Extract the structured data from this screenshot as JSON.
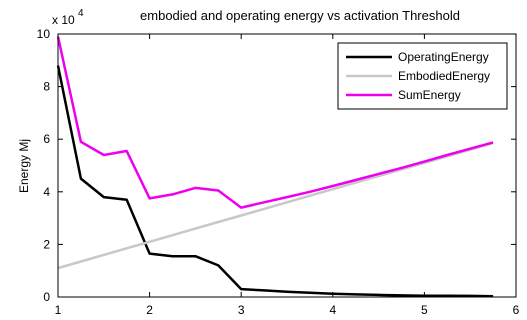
{
  "chart_data": {
    "type": "line",
    "title": "embodied and operating energy  vs activation Threshold",
    "xlabel": "",
    "ylabel": "Energy Mj",
    "y_exponent_base": "x 10",
    "y_exponent_power": "4",
    "xlim": [
      1,
      6
    ],
    "ylim": [
      0,
      10
    ],
    "x_ticks": [
      "1",
      "2",
      "3",
      "4",
      "5",
      "6"
    ],
    "y_ticks": [
      "0",
      "2",
      "4",
      "6",
      "8",
      "10"
    ],
    "grid": false,
    "legend_position": "top-right",
    "series": [
      {
        "name": "OperatingEnergy",
        "color": "#000000",
        "x": [
          1,
          1.25,
          1.5,
          1.75,
          2,
          2.25,
          2.5,
          2.75,
          3,
          3.25,
          3.5,
          3.75,
          4,
          4.25,
          4.5,
          4.75,
          5,
          5.25,
          5.5,
          5.75
        ],
        "y": [
          8.8,
          4.5,
          3.8,
          3.7,
          1.65,
          1.55,
          1.55,
          1.2,
          0.3,
          0.25,
          0.2,
          0.16,
          0.12,
          0.1,
          0.08,
          0.06,
          0.05,
          0.05,
          0.04,
          0.03
        ]
      },
      {
        "name": "EmbodiedEnergy",
        "color": "#c8c8c8",
        "x": [
          1,
          1.25,
          1.5,
          1.75,
          2,
          2.25,
          2.5,
          2.75,
          3,
          3.25,
          3.5,
          3.75,
          4,
          4.25,
          4.5,
          4.75,
          5,
          5.25,
          5.5,
          5.75
        ],
        "y": [
          1.1,
          1.35,
          1.6,
          1.85,
          2.1,
          2.35,
          2.6,
          2.85,
          3.1,
          3.35,
          3.6,
          3.85,
          4.1,
          4.35,
          4.6,
          4.85,
          5.1,
          5.35,
          5.6,
          5.85
        ]
      },
      {
        "name": "SumEnergy",
        "color": "#ee00ee",
        "x": [
          1,
          1.25,
          1.5,
          1.75,
          2,
          2.25,
          2.5,
          2.75,
          3,
          3.25,
          3.5,
          3.75,
          4,
          4.25,
          4.5,
          4.75,
          5,
          5.25,
          5.5,
          5.75
        ],
        "y": [
          9.9,
          5.9,
          5.4,
          5.55,
          3.75,
          3.9,
          4.15,
          4.05,
          3.4,
          3.6,
          3.8,
          4.0,
          4.22,
          4.45,
          4.68,
          4.91,
          5.15,
          5.4,
          5.64,
          5.88
        ]
      }
    ]
  }
}
